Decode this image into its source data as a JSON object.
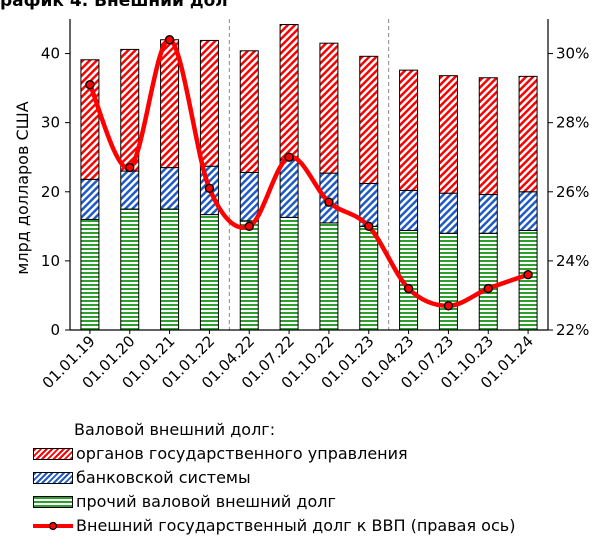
{
  "top_title": "рафик 4. Внешний дол",
  "chart_data": {
    "type": "bar",
    "categories": [
      "01.01.19",
      "01.01.20",
      "01.01.21",
      "01.01.22",
      "01.04.22",
      "01.07.22",
      "01.10.22",
      "01.01.23",
      "01.04.23",
      "01.07.23",
      "01.10.23",
      "01.01.24"
    ],
    "series": [
      {
        "name": "прочий валовой внешний долг",
        "stack": true,
        "color": "#2e9e2e",
        "values": [
          16.0,
          17.5,
          17.5,
          16.7,
          15.8,
          16.3,
          15.5,
          15.0,
          14.4,
          14.0,
          14.0,
          14.4
        ]
      },
      {
        "name": "банковской системы",
        "stack": true,
        "color": "#1e5bc6",
        "values": [
          5.8,
          5.5,
          6.0,
          7.0,
          7.0,
          8.3,
          7.2,
          6.2,
          5.8,
          5.8,
          5.6,
          5.6
        ]
      },
      {
        "name": "органов государственного управления",
        "stack": true,
        "color": "#ff0000",
        "values": [
          17.3,
          17.6,
          18.5,
          18.2,
          17.6,
          19.6,
          18.8,
          18.4,
          17.4,
          17.0,
          16.9,
          16.7
        ]
      },
      {
        "name": "Внешний государственный долг к ВВП (правая ось)",
        "type": "line",
        "axis": "right",
        "color": "#ff0000",
        "values": [
          29.1,
          26.7,
          30.4,
          26.1,
          25.0,
          27.0,
          25.7,
          25.0,
          23.2,
          22.7,
          23.2,
          23.6
        ]
      }
    ],
    "ylabel": "млрд долларов США",
    "ylim": [
      0,
      45
    ],
    "yticks": [
      "0",
      "10",
      "20",
      "30",
      "40"
    ],
    "y2lim": [
      22,
      31
    ],
    "y2ticks": [
      "22%",
      "24%",
      "26%",
      "28%",
      "30%"
    ],
    "legend_title": "Валовой внешний долг:",
    "legend": [
      "органов государственного управления",
      "банковской системы",
      "прочий валовой внешний долг",
      "Внешний государственный долг к ВВП (правая ось)"
    ],
    "legend_position": "bottom",
    "grid": "dashed vertical separators between years"
  }
}
